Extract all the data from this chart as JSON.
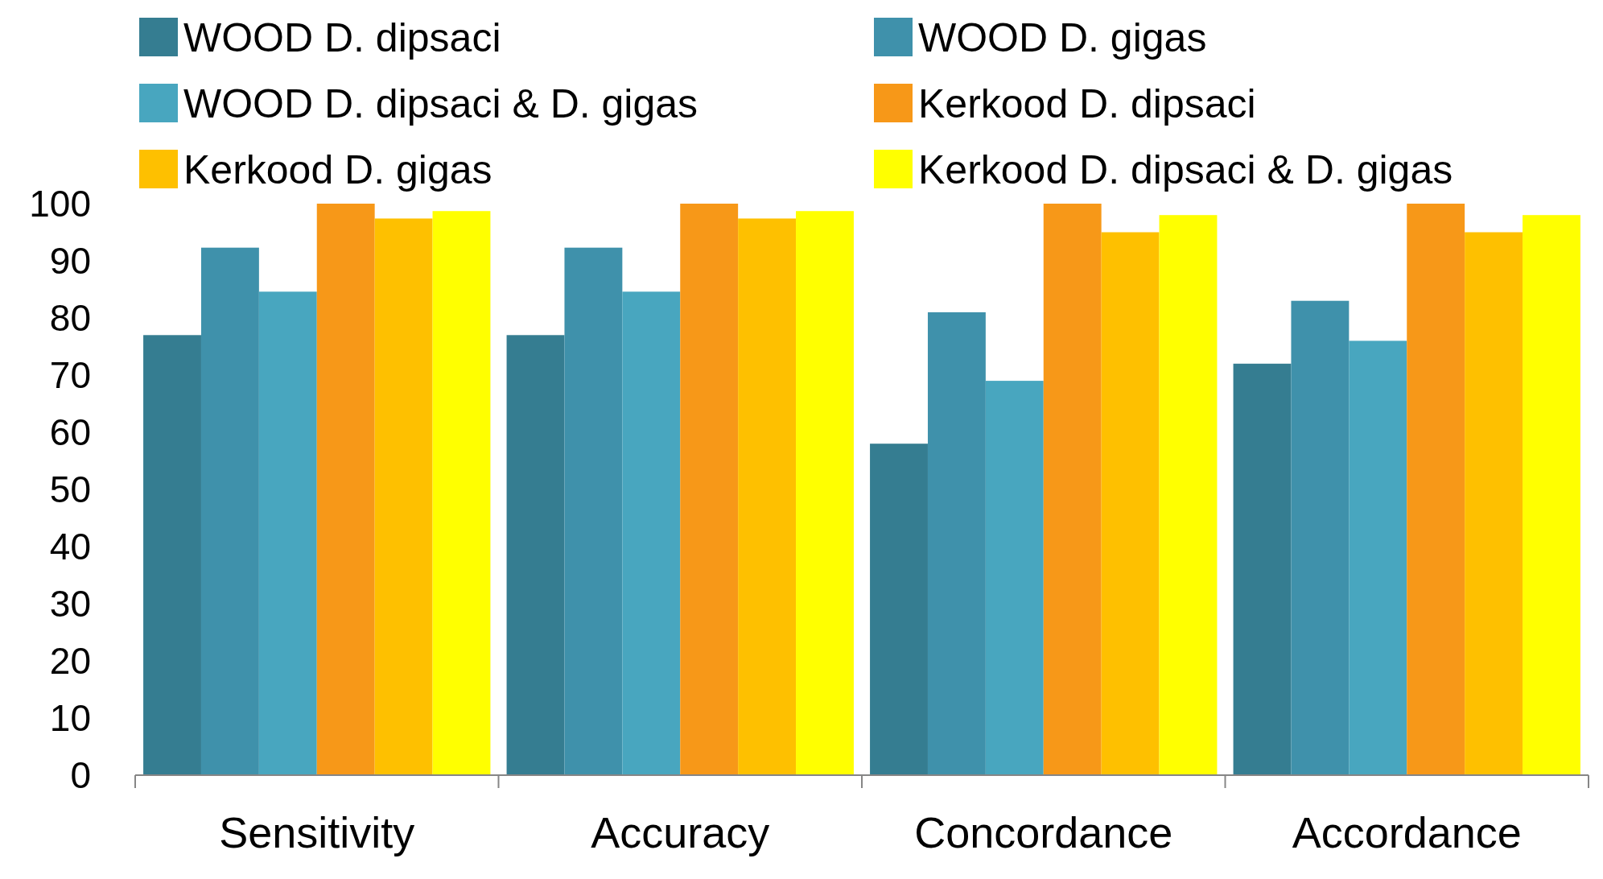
{
  "chart_data": {
    "type": "bar",
    "categories": [
      "Sensitivity",
      "Accuracy",
      "Concordance",
      "Accordance"
    ],
    "series": [
      {
        "name": "WOOD D. dipsaci",
        "color": "#357d91",
        "values": [
          77,
          77,
          58,
          72
        ]
      },
      {
        "name": "WOOD D. gigas",
        "color": "#3f91ab",
        "values": [
          92.3,
          92.3,
          81,
          83
        ]
      },
      {
        "name": "WOOD D. dipsaci & D. gigas",
        "color": "#48a6bf",
        "values": [
          84.6,
          84.6,
          69,
          76
        ]
      },
      {
        "name": "Kerkood D. dipsaci",
        "color": "#f79818",
        "values": [
          100,
          100,
          100,
          100
        ]
      },
      {
        "name": "Kerkood D. gigas",
        "color": "#fec000",
        "values": [
          97.4,
          97.4,
          95,
          95
        ]
      },
      {
        "name": "Kerkood D. dipsaci & D. gigas",
        "color": "#ffff00",
        "values": [
          98.7,
          98.7,
          98,
          98
        ]
      }
    ],
    "ylim": [
      0,
      100
    ],
    "yticks": [
      0,
      10,
      20,
      30,
      40,
      50,
      60,
      70,
      80,
      90,
      100
    ],
    "legend": "top",
    "grid": false
  }
}
